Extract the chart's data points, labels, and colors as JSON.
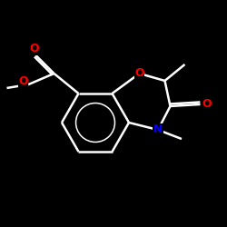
{
  "background_color": "#000000",
  "bond_color": "#ffffff",
  "atom_colors": {
    "O": "#ff0000",
    "N": "#0000ff",
    "C": "#ffffff"
  },
  "bond_width": 1.8,
  "dbo": 0.018,
  "font_size": 9,
  "figsize": [
    2.5,
    2.5
  ],
  "dpi": 100
}
